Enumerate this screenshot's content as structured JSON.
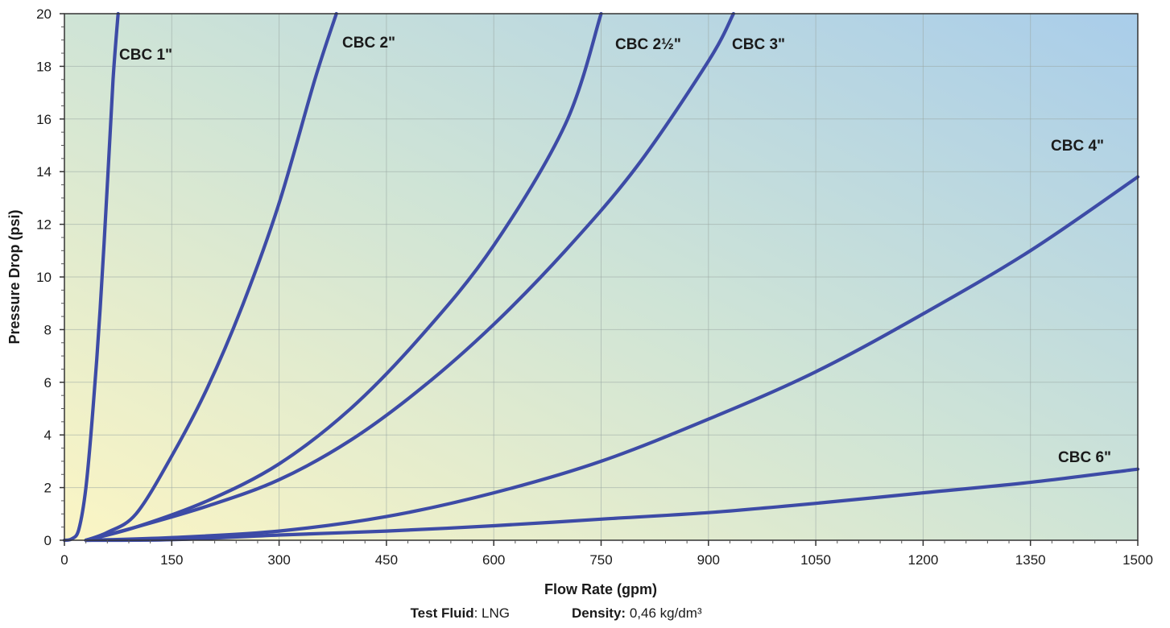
{
  "chart_data": {
    "type": "line",
    "title": "",
    "xlabel": "Flow Rate (gpm)",
    "ylabel": "Pressure Drop (psi)",
    "xlim": [
      0,
      1500
    ],
    "ylim": [
      0,
      20
    ],
    "xticks": [
      "0",
      "150",
      "300",
      "450",
      "600",
      "750",
      "900",
      "1050",
      "1200",
      "1350",
      "1500"
    ],
    "yticks": [
      "0",
      "2",
      "4",
      "6",
      "8",
      "10",
      "12",
      "14",
      "16",
      "18",
      "20"
    ],
    "grid": true,
    "legend": "inline labels",
    "colors": {
      "line": "#3d4ba6",
      "bg_low": "#fbf5c4",
      "bg_high": "#a9cdea"
    },
    "series": [
      {
        "name": "CBC 1\"",
        "x": [
          0,
          10,
          20,
          30,
          40,
          50,
          60,
          68,
          75
        ],
        "y": [
          0,
          0.05,
          0.4,
          2.0,
          5.0,
          8.8,
          13.5,
          17.5,
          20
        ]
      },
      {
        "name": "CBC 2\"",
        "x": [
          30,
          60,
          100,
          150,
          200,
          250,
          300,
          350,
          380
        ],
        "y": [
          0,
          0.3,
          1.0,
          3.2,
          5.8,
          9.0,
          12.8,
          17.5,
          20
        ]
      },
      {
        "name": "CBC 2½\"",
        "x": [
          30,
          100,
          200,
          300,
          400,
          500,
          600,
          700,
          750
        ],
        "y": [
          0,
          0.5,
          1.5,
          2.9,
          5.0,
          7.8,
          11.2,
          15.8,
          20
        ]
      },
      {
        "name": "CBC 3\"",
        "x": [
          30,
          100,
          200,
          300,
          400,
          500,
          600,
          700,
          800,
          900,
          935
        ],
        "y": [
          0,
          0.5,
          1.3,
          2.3,
          3.8,
          5.8,
          8.2,
          11.0,
          14.2,
          18.2,
          20
        ]
      },
      {
        "name": "CBC 4\"",
        "x": [
          30,
          150,
          300,
          450,
          600,
          750,
          900,
          1050,
          1200,
          1350,
          1500
        ],
        "y": [
          0,
          0.1,
          0.35,
          0.9,
          1.8,
          3.0,
          4.6,
          6.4,
          8.6,
          11.0,
          13.8
        ]
      },
      {
        "name": "CBC 6\"",
        "x": [
          30,
          150,
          300,
          450,
          600,
          750,
          900,
          1050,
          1200,
          1350,
          1500
        ],
        "y": [
          0,
          0.02,
          0.2,
          0.35,
          0.55,
          0.8,
          1.05,
          1.4,
          1.8,
          2.2,
          2.7
        ]
      }
    ],
    "footer": {
      "fluid_label": "Test Fluid",
      "fluid_value": "LNG",
      "density_label": "Density:",
      "density_value": "0,46 kg/dm³"
    }
  }
}
